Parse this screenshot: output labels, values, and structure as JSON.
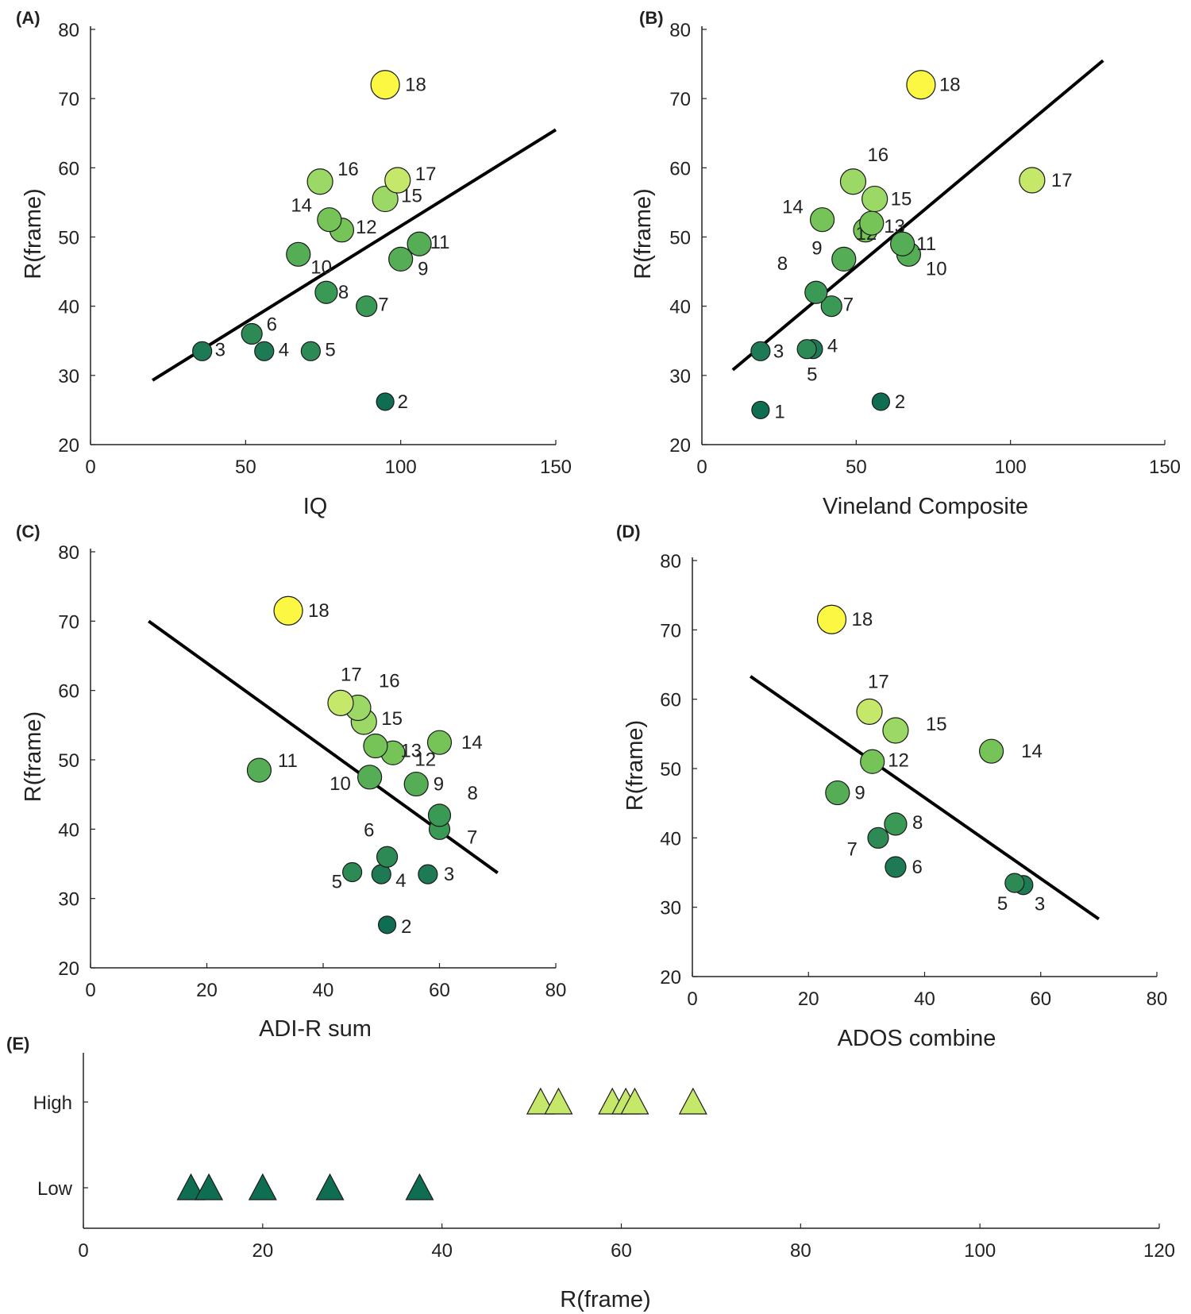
{
  "colors": {
    "c1": "#0f6d52",
    "c2": "#1e7a55",
    "c3": "#2e8a55",
    "c4": "#3a9a55",
    "c5": "#55ad55",
    "c6": "#76c458",
    "c7": "#9cd865",
    "c8": "#c6e86a",
    "c9": "#fcf743",
    "line": "#000000",
    "axis": "#222222"
  },
  "chart_data": [
    {
      "panel": "(A)",
      "type": "scatter",
      "xlabel": "IQ",
      "ylabel": "R(frame)",
      "xlim": [
        0,
        150
      ],
      "ylim": [
        20,
        80
      ],
      "xticks": [
        "0",
        "50",
        "100",
        "150"
      ],
      "yticks": [
        "20",
        "30",
        "40",
        "50",
        "60",
        "70",
        "80"
      ],
      "trend": [
        [
          20,
          29.3
        ],
        [
          150,
          65.5
        ]
      ],
      "points": [
        {
          "id": "2",
          "x": 95,
          "y": 26.2,
          "r": 11,
          "c": "c1"
        },
        {
          "id": "3",
          "x": 36,
          "y": 33.5,
          "r": 12,
          "c": "c2"
        },
        {
          "id": "4",
          "x": 56,
          "y": 33.5,
          "r": 12,
          "c": "c2"
        },
        {
          "id": "5",
          "x": 71,
          "y": 33.5,
          "r": 12,
          "c": "c3"
        },
        {
          "id": "6",
          "x": 52,
          "y": 36,
          "r": 13,
          "c": "c3"
        },
        {
          "id": "7",
          "x": 89,
          "y": 40,
          "r": 13,
          "c": "c4"
        },
        {
          "id": "8",
          "x": 76,
          "y": 42,
          "r": 14,
          "c": "c4"
        },
        {
          "id": "9",
          "x": 100,
          "y": 46.8,
          "r": 15,
          "c": "c5"
        },
        {
          "id": "10",
          "x": 67,
          "y": 47.5,
          "r": 15,
          "c": "c5"
        },
        {
          "id": "11",
          "x": 106,
          "y": 49,
          "r": 15,
          "c": "c5"
        },
        {
          "id": "12",
          "x": 81,
          "y": 51,
          "r": 15,
          "c": "c6"
        },
        {
          "id": "14",
          "x": 77,
          "y": 52.5,
          "r": 15,
          "c": "c6"
        },
        {
          "id": "15",
          "x": 95,
          "y": 55.5,
          "r": 16,
          "c": "c7"
        },
        {
          "id": "16",
          "x": 74,
          "y": 58,
          "r": 16,
          "c": "c7"
        },
        {
          "id": "17",
          "x": 99,
          "y": 58.2,
          "r": 16,
          "c": "c8"
        },
        {
          "id": "18",
          "x": 95,
          "y": 72,
          "r": 18,
          "c": "c9"
        }
      ]
    },
    {
      "panel": "(B)",
      "type": "scatter",
      "xlabel": "Vineland Composite",
      "ylabel": "R(frame)",
      "xlim": [
        0,
        150
      ],
      "ylim": [
        20,
        80
      ],
      "xticks": [
        "0",
        "50",
        "100",
        "150"
      ],
      "yticks": [
        "20",
        "30",
        "40",
        "50",
        "60",
        "70",
        "80"
      ],
      "trend": [
        [
          10,
          30.8
        ],
        [
          130,
          75.5
        ]
      ],
      "points": [
        {
          "id": "1",
          "x": 19,
          "y": 25,
          "r": 11,
          "c": "c1"
        },
        {
          "id": "2",
          "x": 58,
          "y": 26.2,
          "r": 11,
          "c": "c1"
        },
        {
          "id": "3",
          "x": 19,
          "y": 33.5,
          "r": 12,
          "c": "c2"
        },
        {
          "id": "4",
          "x": 36,
          "y": 33.8,
          "r": 12,
          "c": "c2"
        },
        {
          "id": "5",
          "x": 34,
          "y": 33.8,
          "r": 12,
          "c": "c3"
        },
        {
          "id": "7",
          "x": 42,
          "y": 40,
          "r": 13,
          "c": "c4"
        },
        {
          "id": "8",
          "x": 37,
          "y": 42,
          "r": 14,
          "c": "c4"
        },
        {
          "id": "9",
          "x": 46,
          "y": 46.8,
          "r": 15,
          "c": "c5"
        },
        {
          "id": "10",
          "x": 67,
          "y": 47.5,
          "r": 15,
          "c": "c5"
        },
        {
          "id": "11",
          "x": 65,
          "y": 49,
          "r": 15,
          "c": "c5"
        },
        {
          "id": "12",
          "x": 53,
          "y": 51,
          "r": 15,
          "c": "c6"
        },
        {
          "id": "13",
          "x": 55,
          "y": 52,
          "r": 15,
          "c": "c6"
        },
        {
          "id": "14",
          "x": 39,
          "y": 52.5,
          "r": 15,
          "c": "c6"
        },
        {
          "id": "15",
          "x": 56,
          "y": 55.5,
          "r": 16,
          "c": "c7"
        },
        {
          "id": "16",
          "x": 49,
          "y": 58,
          "r": 16,
          "c": "c7"
        },
        {
          "id": "17",
          "x": 107,
          "y": 58.2,
          "r": 16,
          "c": "c8"
        },
        {
          "id": "18",
          "x": 71,
          "y": 72,
          "r": 18,
          "c": "c9"
        }
      ]
    },
    {
      "panel": "(C)",
      "type": "scatter",
      "xlabel": "ADI-R sum",
      "ylabel": "R(frame)",
      "xlim": [
        0,
        80
      ],
      "ylim": [
        20,
        80
      ],
      "xticks": [
        "0",
        "20",
        "40",
        "60",
        "80"
      ],
      "yticks": [
        "20",
        "30",
        "40",
        "50",
        "60",
        "70",
        "80"
      ],
      "trend": [
        [
          10,
          70
        ],
        [
          70,
          33.7
        ]
      ],
      "points": [
        {
          "id": "2",
          "x": 51,
          "y": 26.2,
          "r": 11,
          "c": "c1"
        },
        {
          "id": "3",
          "x": 58,
          "y": 33.5,
          "r": 12,
          "c": "c2"
        },
        {
          "id": "4",
          "x": 50,
          "y": 33.5,
          "r": 12,
          "c": "c2"
        },
        {
          "id": "5",
          "x": 45,
          "y": 33.8,
          "r": 12,
          "c": "c3"
        },
        {
          "id": "6",
          "x": 51,
          "y": 36,
          "r": 13,
          "c": "c3"
        },
        {
          "id": "7",
          "x": 60,
          "y": 40,
          "r": 13,
          "c": "c4"
        },
        {
          "id": "8",
          "x": 60,
          "y": 42,
          "r": 14,
          "c": "c4"
        },
        {
          "id": "9",
          "x": 56,
          "y": 46.5,
          "r": 15,
          "c": "c5"
        },
        {
          "id": "10",
          "x": 48,
          "y": 47.5,
          "r": 15,
          "c": "c5"
        },
        {
          "id": "11",
          "x": 29,
          "y": 48.5,
          "r": 15,
          "c": "c5"
        },
        {
          "id": "12",
          "x": 52,
          "y": 51,
          "r": 15,
          "c": "c6"
        },
        {
          "id": "13",
          "x": 49,
          "y": 52,
          "r": 15,
          "c": "c6"
        },
        {
          "id": "14",
          "x": 60,
          "y": 52.5,
          "r": 15,
          "c": "c6"
        },
        {
          "id": "15",
          "x": 47,
          "y": 55.5,
          "r": 16,
          "c": "c7"
        },
        {
          "id": "16",
          "x": 46,
          "y": 57.5,
          "r": 16,
          "c": "c7"
        },
        {
          "id": "17",
          "x": 43,
          "y": 58.2,
          "r": 16,
          "c": "c8"
        },
        {
          "id": "18",
          "x": 34,
          "y": 71.5,
          "r": 18,
          "c": "c9"
        }
      ]
    },
    {
      "panel": "(D)",
      "type": "scatter",
      "xlabel": "ADOS combine",
      "ylabel": "R(frame)",
      "xlim": [
        0,
        80
      ],
      "ylim": [
        20,
        80
      ],
      "xticks": [
        "0",
        "20",
        "40",
        "60",
        "80"
      ],
      "yticks": [
        "20",
        "30",
        "40",
        "50",
        "60",
        "70",
        "80"
      ],
      "trend": [
        [
          10,
          63.3
        ],
        [
          70,
          28.3
        ]
      ],
      "points": [
        {
          "id": "3",
          "x": 57,
          "y": 33.2,
          "r": 12,
          "c": "c2"
        },
        {
          "id": "5",
          "x": 55.5,
          "y": 33.5,
          "r": 12,
          "c": "c3"
        },
        {
          "id": "6",
          "x": 35,
          "y": 35.8,
          "r": 13,
          "c": "c2"
        },
        {
          "id": "7",
          "x": 32,
          "y": 40,
          "r": 13,
          "c": "c3"
        },
        {
          "id": "8",
          "x": 35,
          "y": 42,
          "r": 14,
          "c": "c4"
        },
        {
          "id": "9",
          "x": 25,
          "y": 46.5,
          "r": 15,
          "c": "c5"
        },
        {
          "id": "12",
          "x": 31,
          "y": 51,
          "r": 15,
          "c": "c6"
        },
        {
          "id": "14",
          "x": 51.5,
          "y": 52.5,
          "r": 15,
          "c": "c6"
        },
        {
          "id": "15",
          "x": 35,
          "y": 55.5,
          "r": 16,
          "c": "c7"
        },
        {
          "id": "17",
          "x": 30.5,
          "y": 58.2,
          "r": 16,
          "c": "c8"
        },
        {
          "id": "18",
          "x": 24,
          "y": 71.5,
          "r": 18,
          "c": "c9"
        }
      ]
    },
    {
      "panel": "(E)",
      "type": "scatter",
      "xlabel": "R(frame)",
      "xlim": [
        0,
        120
      ],
      "xticks": [
        "0",
        "20",
        "40",
        "60",
        "80",
        "100",
        "120"
      ],
      "categories": [
        "High",
        "Low"
      ],
      "points": [
        {
          "group": "High",
          "x": 51,
          "c": "c8"
        },
        {
          "group": "High",
          "x": 53,
          "c": "c8"
        },
        {
          "group": "High",
          "x": 59,
          "c": "c8"
        },
        {
          "group": "High",
          "x": 60.5,
          "c": "c8"
        },
        {
          "group": "High",
          "x": 61.5,
          "c": "c8"
        },
        {
          "group": "High",
          "x": 68,
          "c": "c8"
        },
        {
          "group": "Low",
          "x": 12,
          "c": "c1"
        },
        {
          "group": "Low",
          "x": 14,
          "c": "c1"
        },
        {
          "group": "Low",
          "x": 20,
          "c": "c1"
        },
        {
          "group": "Low",
          "x": 27.5,
          "c": "c1"
        },
        {
          "group": "Low",
          "x": 37.5,
          "c": "c1"
        }
      ]
    }
  ]
}
